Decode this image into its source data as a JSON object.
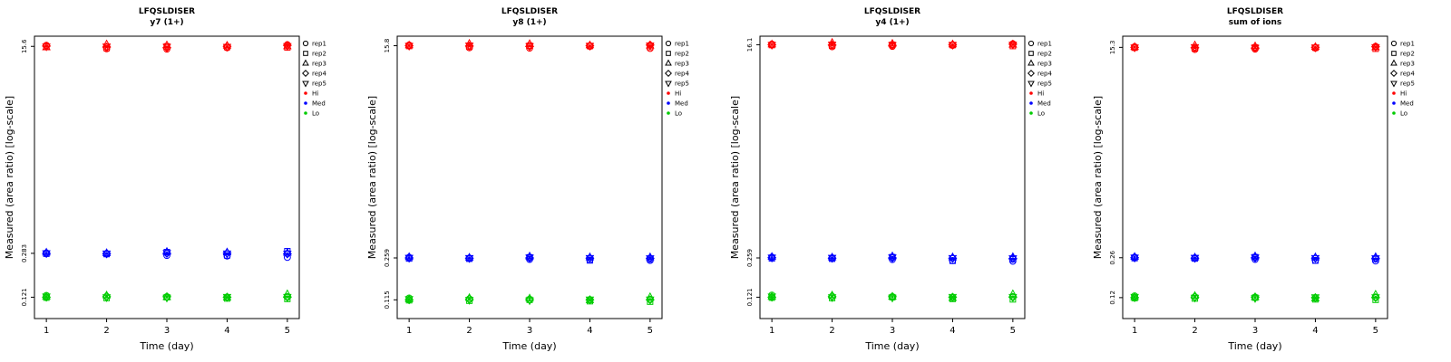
{
  "legend": {
    "reps": [
      {
        "label": "rep1",
        "symbol": "circle"
      },
      {
        "label": "rep2",
        "symbol": "square"
      },
      {
        "label": "rep3",
        "symbol": "triangle-up"
      },
      {
        "label": "rep4",
        "symbol": "diamond"
      },
      {
        "label": "rep5",
        "symbol": "triangle-down"
      }
    ],
    "levels": [
      {
        "label": "Hi",
        "color": "#FF0000"
      },
      {
        "label": "Med",
        "color": "#0000FF"
      },
      {
        "label": "Lo",
        "color": "#00CC00"
      }
    ]
  },
  "chart_data": [
    {
      "type": "scatter",
      "title": "LFQSLDISER",
      "subtitle": "y7 (1+)",
      "xlabel": "Time (day)",
      "ylabel": "Measured (area ratio) [log-scale]",
      "x": [
        1,
        2,
        3,
        4,
        5
      ],
      "y_scale": "log",
      "ylim": [
        0.08,
        19
      ],
      "y_ticks": [
        {
          "label": "15.6",
          "value": 15.6
        },
        {
          "label": "0.283",
          "value": 0.283
        },
        {
          "label": "0.121",
          "value": 0.121
        }
      ],
      "series": [
        {
          "name": "Hi",
          "color": "#FF0000",
          "reps": [
            [
              15.9,
              14.9,
              14.8,
              15.2,
              16.1
            ],
            [
              15.5,
              15.1,
              15.6,
              15.4,
              15.3
            ],
            [
              15.3,
              16.2,
              15.9,
              15.8,
              15.6
            ],
            [
              15.7,
              15.4,
              15.2,
              15.6,
              15.9
            ],
            [
              15.6,
              15.6,
              15.5,
              15.5,
              15.7
            ]
          ]
        },
        {
          "name": "Med",
          "color": "#0000FF",
          "reps": [
            [
              0.285,
              0.282,
              0.272,
              0.269,
              0.262
            ],
            [
              0.281,
              0.279,
              0.29,
              0.272,
              0.295
            ],
            [
              0.287,
              0.284,
              0.291,
              0.288,
              0.286
            ],
            [
              0.283,
              0.281,
              0.283,
              0.284,
              0.28
            ],
            [
              0.284,
              0.283,
              0.285,
              0.283,
              0.282
            ]
          ]
        },
        {
          "name": "Lo",
          "color": "#00CC00",
          "reps": [
            [
              0.125,
              0.123,
              0.122,
              0.121,
              0.122
            ],
            [
              0.12,
              0.119,
              0.121,
              0.118,
              0.117
            ],
            [
              0.122,
              0.125,
              0.121,
              0.12,
              0.128
            ],
            [
              0.121,
              0.122,
              0.122,
              0.121,
              0.121
            ],
            [
              0.123,
              0.121,
              0.12,
              0.122,
              0.122
            ]
          ]
        }
      ]
    },
    {
      "type": "scatter",
      "title": "LFQSLDISER",
      "subtitle": "y8 (1+)",
      "xlabel": "Time (day)",
      "ylabel": "Measured (area ratio) [log-scale]",
      "x": [
        1,
        2,
        3,
        4,
        5
      ],
      "y_scale": "log",
      "ylim": [
        0.08,
        19
      ],
      "y_ticks": [
        {
          "label": "15.8",
          "value": 15.8
        },
        {
          "label": "0.259",
          "value": 0.259
        },
        {
          "label": "0.115",
          "value": 0.115
        }
      ],
      "series": [
        {
          "name": "Hi",
          "color": "#FF0000",
          "reps": [
            [
              16.0,
              15.2,
              15.1,
              15.6,
              15.0
            ],
            [
              15.7,
              15.5,
              15.8,
              15.7,
              15.4
            ],
            [
              15.9,
              16.4,
              16.3,
              15.9,
              15.8
            ],
            [
              15.8,
              15.7,
              15.6,
              15.8,
              16.0
            ],
            [
              15.8,
              15.9,
              15.7,
              15.8,
              15.9
            ]
          ]
        },
        {
          "name": "Med",
          "color": "#0000FF",
          "reps": [
            [
              0.262,
              0.258,
              0.252,
              0.249,
              0.247
            ],
            [
              0.256,
              0.255,
              0.262,
              0.247,
              0.253
            ],
            [
              0.263,
              0.26,
              0.266,
              0.262,
              0.262
            ],
            [
              0.259,
              0.257,
              0.259,
              0.258,
              0.257
            ],
            [
              0.26,
              0.259,
              0.261,
              0.259,
              0.258
            ]
          ]
        },
        {
          "name": "Lo",
          "color": "#00CC00",
          "reps": [
            [
              0.119,
              0.117,
              0.116,
              0.115,
              0.116
            ],
            [
              0.114,
              0.113,
              0.115,
              0.112,
              0.111
            ],
            [
              0.116,
              0.119,
              0.118,
              0.114,
              0.121
            ],
            [
              0.115,
              0.116,
              0.116,
              0.115,
              0.115
            ],
            [
              0.117,
              0.115,
              0.114,
              0.116,
              0.116
            ]
          ]
        }
      ]
    },
    {
      "type": "scatter",
      "title": "LFQSLDISER",
      "subtitle": "y4 (1+)",
      "xlabel": "Time (day)",
      "ylabel": "Measured (area ratio) [log-scale]",
      "x": [
        1,
        2,
        3,
        4,
        5
      ],
      "y_scale": "log",
      "ylim": [
        0.08,
        19
      ],
      "y_ticks": [
        {
          "label": "16.1",
          "value": 16.1
        },
        {
          "label": "0.259",
          "value": 0.259
        },
        {
          "label": "0.121",
          "value": 0.121
        }
      ],
      "series": [
        {
          "name": "Hi",
          "color": "#FF0000",
          "reps": [
            [
              16.3,
              15.5,
              15.6,
              15.9,
              16.4
            ],
            [
              16.0,
              15.8,
              16.1,
              16.0,
              15.7
            ],
            [
              16.2,
              16.7,
              16.4,
              16.2,
              16.1
            ],
            [
              16.1,
              16.0,
              15.9,
              16.1,
              16.3
            ],
            [
              16.1,
              16.2,
              16.0,
              16.1,
              16.2
            ]
          ]
        },
        {
          "name": "Med",
          "color": "#0000FF",
          "reps": [
            [
              0.263,
              0.259,
              0.251,
              0.246,
              0.243
            ],
            [
              0.257,
              0.255,
              0.263,
              0.245,
              0.252
            ],
            [
              0.264,
              0.261,
              0.267,
              0.262,
              0.263
            ],
            [
              0.26,
              0.258,
              0.259,
              0.257,
              0.256
            ],
            [
              0.261,
              0.26,
              0.262,
              0.259,
              0.258
            ]
          ]
        },
        {
          "name": "Lo",
          "color": "#00CC00",
          "reps": [
            [
              0.126,
              0.123,
              0.122,
              0.12,
              0.122
            ],
            [
              0.12,
              0.119,
              0.121,
              0.117,
              0.116
            ],
            [
              0.122,
              0.125,
              0.122,
              0.119,
              0.128
            ],
            [
              0.121,
              0.122,
              0.122,
              0.121,
              0.121
            ],
            [
              0.123,
              0.121,
              0.12,
              0.122,
              0.122
            ]
          ]
        }
      ]
    },
    {
      "type": "scatter",
      "title": "LFQSLDISER",
      "subtitle": "sum of ions",
      "xlabel": "Time (day)",
      "ylabel": "Measured (area ratio) [log-scale]",
      "x": [
        1,
        2,
        3,
        4,
        5
      ],
      "y_scale": "log",
      "ylim": [
        0.08,
        19
      ],
      "y_ticks": [
        {
          "label": "15.3",
          "value": 15.3
        },
        {
          "label": "0.26",
          "value": 0.26
        },
        {
          "label": "0.12",
          "value": 0.12
        }
      ],
      "series": [
        {
          "name": "Hi",
          "color": "#FF0000",
          "reps": [
            [
              15.5,
              14.7,
              14.8,
              15.1,
              15.6
            ],
            [
              15.2,
              15.0,
              15.3,
              15.2,
              14.9
            ],
            [
              15.4,
              15.9,
              15.6,
              15.4,
              15.3
            ],
            [
              15.3,
              15.2,
              15.1,
              15.3,
              15.5
            ],
            [
              15.3,
              15.4,
              15.2,
              15.3,
              15.4
            ]
          ]
        },
        {
          "name": "Med",
          "color": "#0000FF",
          "reps": [
            [
              0.263,
              0.259,
              0.252,
              0.247,
              0.244
            ],
            [
              0.258,
              0.256,
              0.263,
              0.246,
              0.253
            ],
            [
              0.264,
              0.261,
              0.267,
              0.262,
              0.263
            ],
            [
              0.26,
              0.258,
              0.26,
              0.258,
              0.257
            ],
            [
              0.261,
              0.26,
              0.262,
              0.259,
              0.258
            ]
          ]
        },
        {
          "name": "Lo",
          "color": "#00CC00",
          "reps": [
            [
              0.124,
              0.122,
              0.121,
              0.119,
              0.121
            ],
            [
              0.119,
              0.118,
              0.12,
              0.116,
              0.115
            ],
            [
              0.121,
              0.124,
              0.121,
              0.118,
              0.127
            ],
            [
              0.12,
              0.121,
              0.121,
              0.12,
              0.12
            ],
            [
              0.122,
              0.12,
              0.119,
              0.121,
              0.121
            ]
          ]
        }
      ]
    }
  ]
}
